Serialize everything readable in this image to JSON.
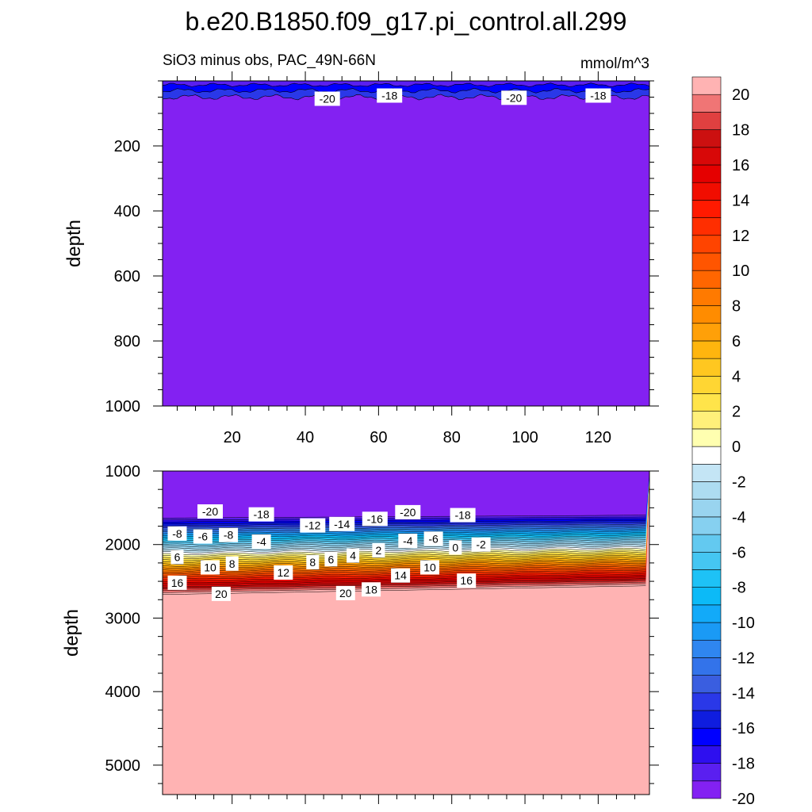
{
  "chart_data": {
    "type": "contour",
    "title": "b.e20.B1850.f09_g17.pi_control.all.299",
    "subtitle_left": "SiO3 minus obs, PAC_49N-66N",
    "subtitle_right": "mmol/m^3",
    "panels": [
      {
        "id": "upper",
        "ylabel": "depth",
        "xlim": [
          1,
          134
        ],
        "ylim": [
          0,
          1000
        ],
        "y_inverted": true,
        "x_ticks": [
          20,
          40,
          60,
          80,
          100,
          120
        ],
        "y_ticks": [
          200,
          400,
          600,
          800,
          1000
        ],
        "background_value": -21,
        "surface_band": {
          "depth_top": 0,
          "depth_bottom": 50,
          "values": [
            -16,
            -18,
            -20
          ]
        },
        "contour_labels": [
          {
            "text": "-20",
            "x": 46,
            "depth": 55
          },
          {
            "text": "-18",
            "x": 63,
            "depth": 45
          },
          {
            "text": "-20",
            "x": 97,
            "depth": 52
          },
          {
            "text": "-18",
            "x": 120,
            "depth": 45
          }
        ]
      },
      {
        "id": "lower",
        "ylabel": "depth",
        "xlim": [
          1,
          134
        ],
        "ylim": [
          1000,
          5400
        ],
        "y_inverted": true,
        "y_ticks": [
          1000,
          2000,
          3000,
          4000,
          5000
        ],
        "upper_value": -21,
        "lower_value": 21,
        "gradient_top_depth": [
          1640,
          1600
        ],
        "gradient_bottom_depth": [
          2680,
          2560
        ],
        "contour_labels": [
          {
            "text": "-20",
            "x": 14,
            "depth": 1550
          },
          {
            "text": "-18",
            "x": 28,
            "depth": 1590
          },
          {
            "text": "-12",
            "x": 42,
            "depth": 1740
          },
          {
            "text": "-14",
            "x": 50,
            "depth": 1720
          },
          {
            "text": "-16",
            "x": 59,
            "depth": 1650
          },
          {
            "text": "-20",
            "x": 68,
            "depth": 1560
          },
          {
            "text": "-18",
            "x": 83,
            "depth": 1600
          },
          {
            "text": "-8",
            "x": 5,
            "depth": 1850
          },
          {
            "text": "-6",
            "x": 12,
            "depth": 1890
          },
          {
            "text": "-8",
            "x": 19,
            "depth": 1870
          },
          {
            "text": "-4",
            "x": 28,
            "depth": 1960
          },
          {
            "text": "-4",
            "x": 68,
            "depth": 1950
          },
          {
            "text": "-6",
            "x": 75,
            "depth": 1920
          },
          {
            "text": "2",
            "x": 60,
            "depth": 2080
          },
          {
            "text": "0",
            "x": 81,
            "depth": 2040
          },
          {
            "text": "-2",
            "x": 88,
            "depth": 2000
          },
          {
            "text": "6",
            "x": 5,
            "depth": 2170
          },
          {
            "text": "10",
            "x": 14,
            "depth": 2310
          },
          {
            "text": "8",
            "x": 20,
            "depth": 2260
          },
          {
            "text": "12",
            "x": 34,
            "depth": 2380
          },
          {
            "text": "8",
            "x": 42,
            "depth": 2240
          },
          {
            "text": "6",
            "x": 47,
            "depth": 2200
          },
          {
            "text": "4",
            "x": 53,
            "depth": 2150
          },
          {
            "text": "14",
            "x": 66,
            "depth": 2420
          },
          {
            "text": "10",
            "x": 74,
            "depth": 2310
          },
          {
            "text": "16",
            "x": 5,
            "depth": 2520
          },
          {
            "text": "20",
            "x": 17,
            "depth": 2670
          },
          {
            "text": "20",
            "x": 51,
            "depth": 2660
          },
          {
            "text": "18",
            "x": 58,
            "depth": 2610
          },
          {
            "text": "16",
            "x": 84,
            "depth": 2490
          }
        ]
      }
    ],
    "colorbar": {
      "levels": [
        -20,
        -19,
        -18,
        -17,
        -16,
        -15,
        -14,
        -13,
        -12,
        -11,
        -10,
        -9,
        -8,
        -7,
        -6,
        -5,
        -4,
        -3,
        -2,
        -1,
        0,
        1,
        2,
        3,
        4,
        5,
        6,
        7,
        8,
        9,
        10,
        11,
        12,
        13,
        14,
        15,
        16,
        17,
        18,
        19,
        20
      ],
      "tick_labels": [
        "20",
        "18",
        "16",
        "14",
        "12",
        "10",
        "8",
        "6",
        "4",
        "2",
        "0",
        "-2",
        "-4",
        "-6",
        "-8",
        "-10",
        "-12",
        "-14",
        "-16",
        "-18",
        "-20"
      ],
      "colors_bottom_to_top": [
        "#8321f2",
        "#5a1ff0",
        "#2e0fef",
        "#0000ff",
        "#0f1ddf",
        "#2a38e8",
        "#3a5ee0",
        "#3373ea",
        "#2f86f0",
        "#1a9af5",
        "#12aaf9",
        "#0cbaf7",
        "#1ec2f6",
        "#45c6f2",
        "#63c9f0",
        "#86d0f0",
        "#99d4ef",
        "#addcf1",
        "#c4e5f5",
        "#ffffff",
        "#ffffb0",
        "#fff07a",
        "#ffe44a",
        "#ffd633",
        "#ffc720",
        "#ffb50e",
        "#ffa008",
        "#ff8c00",
        "#ff7a00",
        "#ff6600",
        "#ff5500",
        "#ff4400",
        "#ff2e00",
        "#ff1a00",
        "#f10d00",
        "#e50000",
        "#d80808",
        "#cc1010",
        "#e04040",
        "#f07575",
        "#ffb3b3"
      ]
    }
  }
}
